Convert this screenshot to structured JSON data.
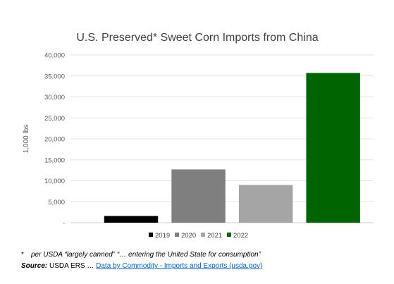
{
  "chart_data": {
    "type": "bar",
    "title": "U.S. Preserved* Sweet Corn Imports from China",
    "ylabel": "1,000 lbs",
    "xlabel": "",
    "ylim": [
      0,
      40000
    ],
    "yticks": [
      0,
      5000,
      10000,
      15000,
      20000,
      25000,
      30000,
      35000,
      40000
    ],
    "ytick_labels": [
      "-",
      "5,000",
      "10,000",
      "15,000",
      "20,000",
      "25,000",
      "30,000",
      "35,000",
      "40,000"
    ],
    "grid": true,
    "legend_position": "bottom",
    "series": [
      {
        "name": "2019",
        "value": 1600,
        "color": "#000000"
      },
      {
        "name": "2020",
        "value": 12700,
        "color": "#7f7f7f"
      },
      {
        "name": "2021",
        "value": 9000,
        "color": "#a5a5a5"
      },
      {
        "name": "2022",
        "value": 35700,
        "color": "#006400"
      }
    ]
  },
  "footnote": {
    "mark": "*",
    "text": "per USDA “largely canned” “… entering the United State for consumption”"
  },
  "source": {
    "label": "Source:",
    "text": " USDA ERS … ",
    "link_text": "Data by Commodity - Imports and Exports (usda.gov)"
  }
}
